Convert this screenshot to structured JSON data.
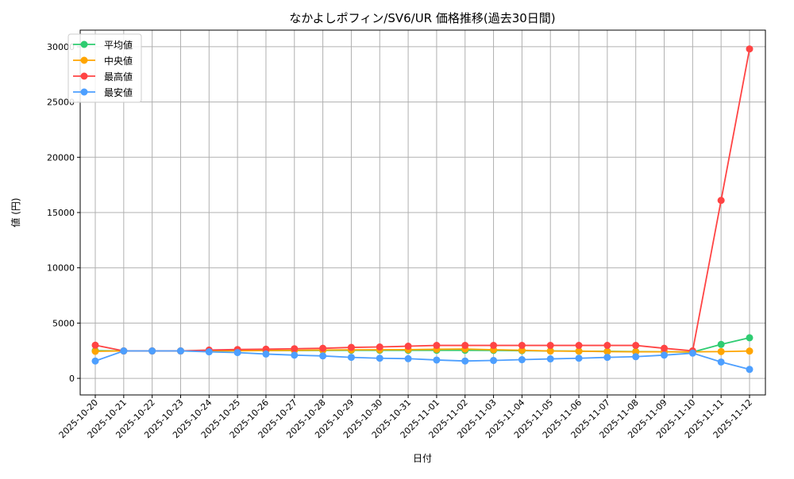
{
  "chart_data": {
    "type": "line",
    "title": "なかよしポフィン/SV6/UR 価格推移(過去30日間)",
    "xlabel": "日付",
    "ylabel": "値 (円)",
    "ylim": [
      -1500,
      31500
    ],
    "yticks": [
      0,
      5000,
      10000,
      15000,
      20000,
      25000,
      30000
    ],
    "grid": true,
    "legend_position": "top-left",
    "x": [
      "2025-10-20",
      "2025-10-21",
      "2025-10-22",
      "2025-10-23",
      "2025-10-24",
      "2025-10-25",
      "2025-10-26",
      "2025-10-27",
      "2025-10-28",
      "2025-10-29",
      "2025-10-30",
      "2025-10-31",
      "2025-11-01",
      "2025-11-02",
      "2025-11-03",
      "2025-11-04",
      "2025-11-05",
      "2025-11-06",
      "2025-11-07",
      "2025-11-08",
      "2025-11-09",
      "2025-11-10",
      "2025-11-11",
      "2025-11-12"
    ],
    "series": [
      {
        "name": "平均値",
        "color": "#2ecc71",
        "values": [
          2500,
          2480,
          2480,
          2480,
          2480,
          2500,
          2510,
          2520,
          2530,
          2540,
          2540,
          2540,
          2540,
          2540,
          2530,
          2500,
          2480,
          2460,
          2440,
          2420,
          2400,
          2380,
          3070,
          3670
        ]
      },
      {
        "name": "中央値",
        "color": "#ffa500",
        "values": [
          2450,
          2480,
          2480,
          2480,
          2480,
          2500,
          2520,
          2540,
          2560,
          2580,
          2590,
          2600,
          2630,
          2650,
          2590,
          2540,
          2470,
          2460,
          2420,
          2400,
          2400,
          2400,
          2420,
          2470
        ]
      },
      {
        "name": "最高値",
        "color": "#ff4444",
        "values": [
          3000,
          2480,
          2480,
          2480,
          2560,
          2610,
          2640,
          2680,
          2720,
          2800,
          2840,
          2910,
          2980,
          2980,
          2980,
          2980,
          2980,
          2980,
          2980,
          2980,
          2720,
          2490,
          16100,
          29800
        ]
      },
      {
        "name": "最安値",
        "color": "#4d9fff",
        "values": [
          1570,
          2480,
          2480,
          2480,
          2400,
          2330,
          2200,
          2100,
          2030,
          1900,
          1820,
          1780,
          1660,
          1570,
          1620,
          1690,
          1760,
          1820,
          1900,
          1960,
          2100,
          2280,
          1480,
          810
        ]
      }
    ]
  }
}
